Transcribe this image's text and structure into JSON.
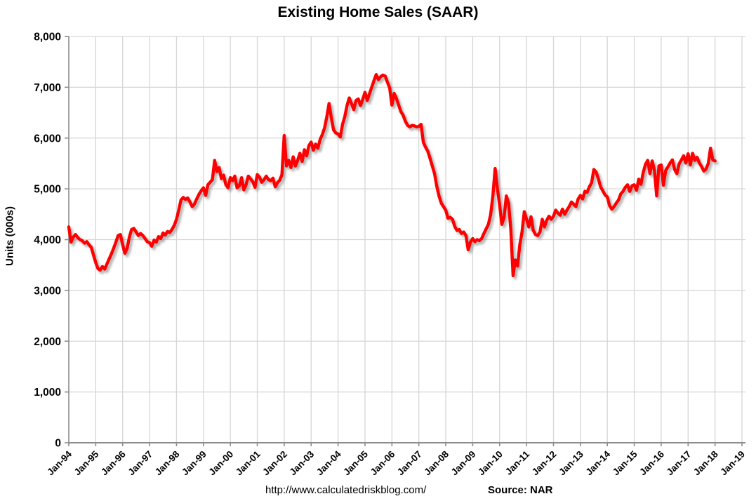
{
  "chart_data": {
    "type": "line",
    "title": "Existing Home Sales (SAAR)",
    "ylabel": "Units (000s)",
    "footer_left": "http://www.calculatedriskblog.com/",
    "footer_right": "Source: NAR",
    "grid": true,
    "legend": "none",
    "line_color": "#FF0000",
    "frequency": "monthly",
    "x_start": "Jan-94",
    "x_tick_labels": [
      "Jan-94",
      "Jan-95",
      "Jan-96",
      "Jan-97",
      "Jan-98",
      "Jan-99",
      "Jan-00",
      "Jan-01",
      "Jan-02",
      "Jan-03",
      "Jan-04",
      "Jan-05",
      "Jan-06",
      "Jan-07",
      "Jan-08",
      "Jan-09",
      "Jan-10",
      "Jan-11",
      "Jan-12",
      "Jan-13",
      "Jan-14",
      "Jan-15",
      "Jan-16",
      "Jan-17",
      "Jan-18",
      "Jan-19"
    ],
    "y_ticks": [
      0,
      1000,
      2000,
      3000,
      4000,
      5000,
      6000,
      7000,
      8000
    ],
    "ylim": [
      0,
      8000
    ],
    "series": [
      {
        "name": "Existing Home Sales",
        "units": "thousands SAAR",
        "values": [
          4250,
          3950,
          4050,
          4100,
          4040,
          4000,
          3980,
          3930,
          3960,
          3900,
          3850,
          3700,
          3550,
          3430,
          3400,
          3470,
          3420,
          3520,
          3620,
          3720,
          3830,
          3950,
          4080,
          4100,
          3900,
          3730,
          3830,
          4050,
          4200,
          4220,
          4150,
          4080,
          4120,
          4080,
          4020,
          3960,
          3940,
          3870,
          3990,
          3950,
          4060,
          4020,
          4130,
          4090,
          4160,
          4140,
          4200,
          4280,
          4400,
          4580,
          4780,
          4830,
          4790,
          4820,
          4740,
          4650,
          4700,
          4800,
          4890,
          4960,
          5020,
          4870,
          5080,
          5130,
          5180,
          5560,
          5340,
          5420,
          5200,
          5270,
          5080,
          5020,
          5220,
          5160,
          5250,
          5020,
          5060,
          5220,
          4980,
          5080,
          5250,
          5200,
          5140,
          5030,
          5280,
          5230,
          5130,
          5180,
          5250,
          5180,
          5160,
          5210,
          5040,
          5120,
          5170,
          5280,
          6050,
          5450,
          5560,
          5420,
          5630,
          5450,
          5560,
          5700,
          5540,
          5770,
          5650,
          5850,
          5920,
          5760,
          5880,
          5800,
          5970,
          6070,
          6200,
          6420,
          6680,
          6400,
          6160,
          6100,
          6080,
          6020,
          6270,
          6420,
          6640,
          6790,
          6680,
          6560,
          6740,
          6770,
          6640,
          6760,
          6900,
          6740,
          6870,
          7000,
          7130,
          7250,
          7150,
          7210,
          7240,
          7220,
          7100,
          6990,
          6650,
          6880,
          6780,
          6650,
          6520,
          6450,
          6330,
          6250,
          6220,
          6250,
          6240,
          6220,
          6230,
          6270,
          5920,
          5820,
          5740,
          5600,
          5450,
          5300,
          5050,
          4860,
          4720,
          4650,
          4580,
          4420,
          4440,
          4400,
          4260,
          4180,
          4200,
          4120,
          4150,
          4080,
          3800,
          3950,
          4020,
          3960,
          4000,
          3980,
          4020,
          4120,
          4210,
          4300,
          4490,
          4860,
          5400,
          5010,
          4690,
          4300,
          4440,
          4860,
          4720,
          4200,
          3290,
          3600,
          3480,
          3900,
          4150,
          4550,
          4400,
          4250,
          4450,
          4180,
          4100,
          4080,
          4150,
          4400,
          4250,
          4380,
          4460,
          4400,
          4460,
          4580,
          4520,
          4480,
          4600,
          4500,
          4580,
          4650,
          4740,
          4700,
          4650,
          4800,
          4870,
          4800,
          4950,
          4930,
          5040,
          5120,
          5380,
          5330,
          5200,
          5040,
          4960,
          4880,
          4840,
          4670,
          4600,
          4650,
          4720,
          4780,
          4900,
          4950,
          5030,
          5080,
          4950,
          5060,
          5080,
          4970,
          5190,
          5090,
          5320,
          5480,
          5560,
          5300,
          5550,
          5360,
          4860,
          5450,
          5470,
          5070,
          5360,
          5430,
          5510,
          5570,
          5380,
          5300,
          5490,
          5570,
          5650,
          5510,
          5690,
          5470,
          5700,
          5560,
          5620,
          5510,
          5440,
          5350,
          5390,
          5500,
          5800,
          5570,
          5550
        ]
      }
    ]
  }
}
